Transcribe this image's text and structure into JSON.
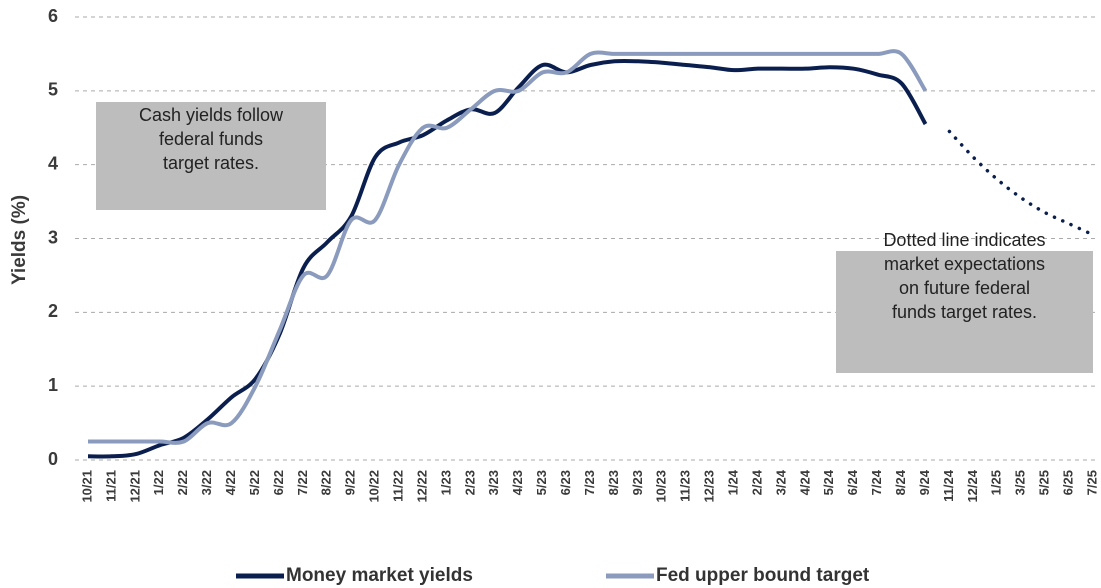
{
  "chart_data": {
    "type": "line",
    "y_label": "Yields (%)",
    "categories": [
      "10/21",
      "11/21",
      "12/21",
      "1/22",
      "2/22",
      "3/22",
      "4/22",
      "5/22",
      "6/22",
      "7/22",
      "8/22",
      "9/22",
      "10/22",
      "11/22",
      "12/22",
      "1/23",
      "2/23",
      "3/23",
      "4/23",
      "5/23",
      "6/23",
      "7/23",
      "8/23",
      "9/23",
      "10/23",
      "11/23",
      "12/23",
      "1/24",
      "2/24",
      "3/24",
      "4/24",
      "5/24",
      "6/24",
      "7/24",
      "8/24",
      "9/24",
      "11/24",
      "12/24",
      "1/25",
      "3/25",
      "5/25",
      "6/25",
      "7/25"
    ],
    "series": [
      {
        "name": "Money market yields",
        "color": "#0b1f4f",
        "style": "solid",
        "values": [
          0.05,
          0.05,
          0.08,
          0.2,
          0.3,
          0.55,
          0.85,
          1.1,
          1.7,
          2.6,
          2.95,
          3.3,
          4.1,
          4.3,
          4.4,
          4.6,
          4.75,
          4.7,
          5.05,
          5.35,
          5.25,
          5.35,
          5.4,
          5.4,
          5.38,
          5.35,
          5.32,
          5.28,
          5.3,
          5.3,
          5.3,
          5.32,
          5.3,
          5.22,
          5.1,
          4.55,
          null,
          null,
          null,
          null,
          null,
          null,
          null
        ]
      },
      {
        "name": "Fed upper bound target",
        "color": "#8b9bbd",
        "style": "solid",
        "values": [
          0.25,
          0.25,
          0.25,
          0.25,
          0.25,
          0.5,
          0.5,
          1.0,
          1.75,
          2.5,
          2.5,
          3.25,
          3.25,
          4.0,
          4.5,
          4.5,
          4.75,
          5.0,
          5.0,
          5.25,
          5.25,
          5.5,
          5.5,
          5.5,
          5.5,
          5.5,
          5.5,
          5.5,
          5.5,
          5.5,
          5.5,
          5.5,
          5.5,
          5.5,
          5.5,
          5.0,
          null,
          null,
          null,
          null,
          null,
          null,
          null
        ]
      },
      {
        "color": "#0b1f4f",
        "style": "dotted",
        "values": [
          null,
          null,
          null,
          null,
          null,
          null,
          null,
          null,
          null,
          null,
          null,
          null,
          null,
          null,
          null,
          null,
          null,
          null,
          null,
          null,
          null,
          null,
          null,
          null,
          null,
          null,
          null,
          null,
          null,
          null,
          null,
          null,
          null,
          null,
          null,
          null,
          4.45,
          4.1,
          3.8,
          3.55,
          3.35,
          3.2,
          3.05
        ]
      }
    ],
    "ylim": [
      0,
      6
    ],
    "yticks": [
      0,
      1,
      2,
      3,
      4,
      5,
      6
    ],
    "grid": true,
    "annotations": [
      {
        "lines": [
          "Cash yields follow",
          "federal funds",
          "target rates."
        ]
      },
      {
        "lines": [
          "Dotted line indicates",
          "market expectations",
          "on future federal",
          "funds target rates."
        ]
      }
    ]
  }
}
